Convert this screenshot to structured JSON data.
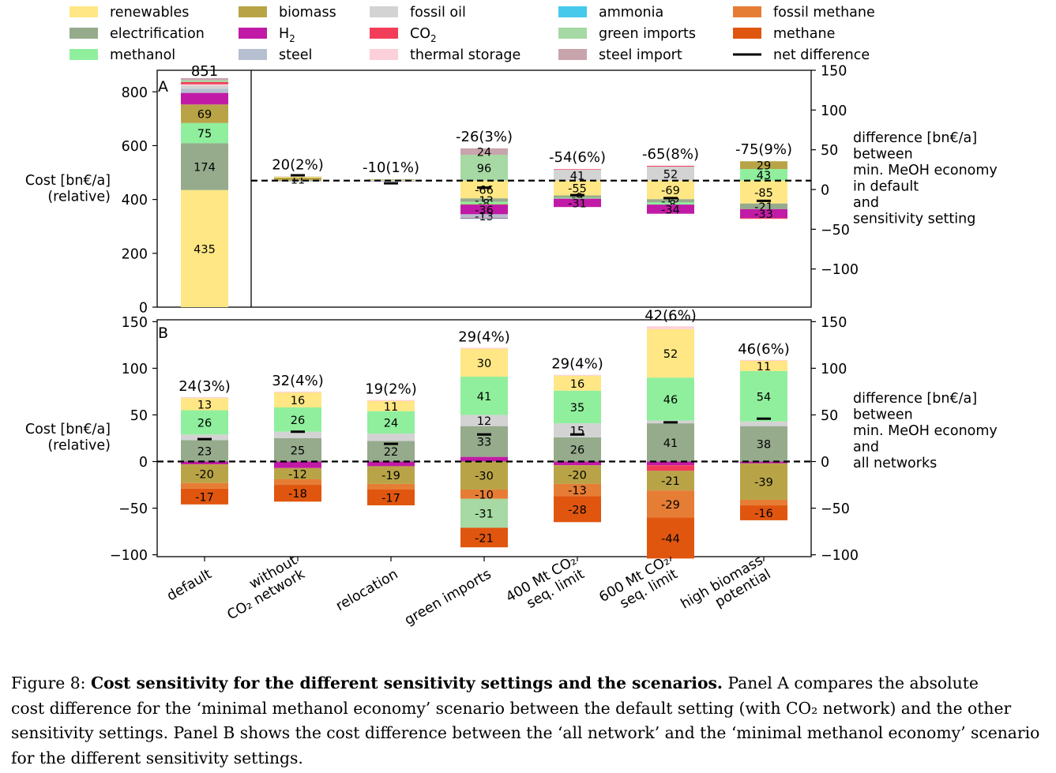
{
  "legend": [
    {
      "key": "renewables",
      "label": "renewables",
      "color": "#fee784"
    },
    {
      "key": "biomass",
      "label": "biomass",
      "color": "#b8a447"
    },
    {
      "key": "fossil_oil",
      "label": "fossil oil",
      "color": "#d3d3d3"
    },
    {
      "key": "ammonia",
      "label": "ammonia",
      "color": "#47c9ec"
    },
    {
      "key": "fossil_methane",
      "label": "fossil methane",
      "color": "#e67d35"
    },
    {
      "key": "electrification",
      "label": "electrification",
      "color": "#95ab8c"
    },
    {
      "key": "h2",
      "label": "H",
      "sub": "2",
      "color": "#c11aa6"
    },
    {
      "key": "co2",
      "label": "CO",
      "sub": "2",
      "color": "#f23d5a"
    },
    {
      "key": "green_imports",
      "label": "green imports",
      "color": "#a6d9a3"
    },
    {
      "key": "methane",
      "label": "methane",
      "color": "#e0560f"
    },
    {
      "key": "methanol",
      "label": "methanol",
      "color": "#8fef9d"
    },
    {
      "key": "steel",
      "label": "steel",
      "color": "#b5bfcf"
    },
    {
      "key": "thermal_storage",
      "label": "thermal storage",
      "color": "#fcd0d9"
    },
    {
      "key": "steel_import",
      "label": "steel import",
      "color": "#c8a4ad"
    },
    {
      "key": "net",
      "label": "net difference",
      "color": "#000000"
    }
  ],
  "chart_data": [
    {
      "panel": "A",
      "type": "bar",
      "stacked": true,
      "ylabel": "Cost [bn€/a]\n(relative)",
      "ylabel_right": "difference [bn€/a]\nbetween\nmin. MeOH economy\nin default\nand\nsensitivity setting",
      "ylim": [
        0,
        880
      ],
      "yticks": [
        0,
        200,
        400,
        600,
        800
      ],
      "ylim_right": [
        -148,
        150
      ],
      "yticks_right": [
        -100,
        -50,
        0,
        50,
        100,
        150
      ],
      "baseline_absolute": 470,
      "default_bar": {
        "category": "default",
        "total_label": "851",
        "segments": [
          {
            "key": "renewables",
            "value": 435,
            "label": "435"
          },
          {
            "key": "electrification",
            "value": 174,
            "label": "174"
          },
          {
            "key": "methanol",
            "value": 75,
            "label": "75"
          },
          {
            "key": "biomass",
            "value": 69,
            "label": "69"
          },
          {
            "key": "h2",
            "value": 43
          },
          {
            "key": "steel",
            "value": 15
          },
          {
            "key": "fossil_oil",
            "value": 12
          },
          {
            "key": "thermal_storage",
            "value": 5
          },
          {
            "key": "co2",
            "value": 8
          },
          {
            "key": "green_imports",
            "value": 7
          },
          {
            "key": "steel_import",
            "value": 8
          }
        ]
      },
      "categories": [
        "default",
        "without CO2 network",
        "relocation",
        "green imports",
        "400 Mt CO2 seq. limit",
        "600 Mt CO2 seq. limit",
        "high biomass potential"
      ],
      "differences": [
        null,
        {
          "total_label": "20(2%)",
          "net": 20,
          "positive": [
            {
              "key": "biomass",
              "value": 11,
              "label": "11"
            },
            {
              "key": "renewables",
              "value": 3
            },
            {
              "key": "fossil_oil",
              "value": 2
            }
          ],
          "negative": [
            {
              "key": "electrification",
              "value": -2
            },
            {
              "key": "steel",
              "value": -1
            }
          ]
        },
        {
          "total_label": "-10(1%)",
          "net": -10,
          "positive": [
            {
              "key": "renewables",
              "value": 2
            },
            {
              "key": "biomass",
              "value": 2
            },
            {
              "key": "green_imports",
              "value": 1
            }
          ],
          "negative": [
            {
              "key": "methanol",
              "value": -1
            },
            {
              "key": "h2",
              "value": -1
            },
            {
              "key": "steel",
              "value": -1
            }
          ]
        },
        {
          "total_label": "-26(3%)",
          "net": -26,
          "positive": [
            {
              "key": "green_imports",
              "value": 96,
              "label": "96"
            },
            {
              "key": "steel_import",
              "value": 24,
              "label": "24"
            }
          ],
          "negative": [
            {
              "key": "renewables",
              "value": -66,
              "label": "-66"
            },
            {
              "key": "electrification",
              "value": -13,
              "label": "-13"
            },
            {
              "key": "methanol",
              "value": -8,
              "label": "-8"
            },
            {
              "key": "biomass",
              "value": -2
            },
            {
              "key": "h2",
              "value": -36,
              "label": "-36"
            },
            {
              "key": "steel",
              "value": -13,
              "label": "-13"
            },
            {
              "key": "co2",
              "value": -2
            },
            {
              "key": "ammonia",
              "value": -2
            }
          ]
        },
        {
          "total_label": "-54(6%)",
          "net": -54,
          "positive": [
            {
              "key": "fossil_oil",
              "value": 41,
              "label": "41"
            },
            {
              "key": "co2",
              "value": 2
            }
          ],
          "negative": [
            {
              "key": "renewables",
              "value": -55,
              "label": "-55"
            },
            {
              "key": "electrification",
              "value": -9,
              "label": "-9"
            },
            {
              "key": "methanol",
              "value": -3
            },
            {
              "key": "h2",
              "value": -31,
              "label": "-31"
            }
          ]
        },
        {
          "total_label": "-65(8%)",
          "net": -65,
          "positive": [
            {
              "key": "fossil_oil",
              "value": 52,
              "label": "52"
            },
            {
              "key": "co2",
              "value": 3
            }
          ],
          "negative": [
            {
              "key": "renewables",
              "value": -69,
              "label": "-69"
            },
            {
              "key": "electrification",
              "value": -12,
              "label": "-12"
            },
            {
              "key": "methanol",
              "value": -8,
              "label": "-8"
            },
            {
              "key": "h2",
              "value": -34,
              "label": "-34"
            }
          ]
        },
        {
          "total_label": "-75(9%)",
          "net": -75,
          "positive": [
            {
              "key": "methanol",
              "value": 43,
              "label": "43"
            },
            {
              "key": "biomass",
              "value": 29,
              "label": "29"
            }
          ],
          "negative": [
            {
              "key": "renewables",
              "value": -85,
              "label": "-85"
            },
            {
              "key": "electrification",
              "value": -21,
              "label": "-21"
            },
            {
              "key": "h2",
              "value": -33,
              "label": "-33"
            },
            {
              "key": "co2",
              "value": -3
            }
          ]
        }
      ]
    },
    {
      "panel": "B",
      "type": "bar",
      "stacked": true,
      "ylabel": "Cost [bn€/a]\n(relative)",
      "ylabel_right": "difference [bn€/a]\nbetween\nmin. MeOH economy\nand\nall networks",
      "ylim": [
        -102,
        152
      ],
      "yticks": [
        -100,
        -50,
        0,
        50,
        100,
        150
      ],
      "yticks_right": [
        -100,
        -50,
        0,
        50,
        100,
        150
      ],
      "categories": [
        "default",
        "without CO2 network",
        "relocation",
        "green imports",
        "400 Mt CO2 seq. limit",
        "600 Mt CO2 seq. limit",
        "high biomass potential"
      ],
      "differences": [
        {
          "total_label": "24(3%)",
          "net": 24,
          "positive": [
            {
              "key": "electrification",
              "value": 23,
              "label": "23"
            },
            {
              "key": "fossil_oil",
              "value": 6
            },
            {
              "key": "methanol",
              "value": 26,
              "label": "26"
            },
            {
              "key": "renewables",
              "value": 13,
              "label": "13"
            },
            {
              "key": "thermal_storage",
              "value": 1
            }
          ],
          "negative": [
            {
              "key": "h2",
              "value": -3
            },
            {
              "key": "biomass",
              "value": -20,
              "label": "-20"
            },
            {
              "key": "fossil_methane",
              "value": -6
            },
            {
              "key": "methane",
              "value": -17,
              "label": "-17"
            }
          ]
        },
        {
          "total_label": "32(4%)",
          "net": 32,
          "positive": [
            {
              "key": "electrification",
              "value": 25,
              "label": "25"
            },
            {
              "key": "fossil_oil",
              "value": 7
            },
            {
              "key": "methanol",
              "value": 26,
              "label": "26"
            },
            {
              "key": "renewables",
              "value": 16,
              "label": "16"
            },
            {
              "key": "thermal_storage",
              "value": 1
            }
          ],
          "negative": [
            {
              "key": "h2",
              "value": -7
            },
            {
              "key": "biomass",
              "value": -12,
              "label": "-12"
            },
            {
              "key": "fossil_methane",
              "value": -6
            },
            {
              "key": "methane",
              "value": -18,
              "label": "-18"
            }
          ]
        },
        {
          "total_label": "19(2%)",
          "net": 19,
          "positive": [
            {
              "key": "electrification",
              "value": 22,
              "label": "22"
            },
            {
              "key": "fossil_oil",
              "value": 8
            },
            {
              "key": "methanol",
              "value": 24,
              "label": "24"
            },
            {
              "key": "renewables",
              "value": 11,
              "label": "11"
            },
            {
              "key": "thermal_storage",
              "value": 1
            }
          ],
          "negative": [
            {
              "key": "h2",
              "value": -5
            },
            {
              "key": "biomass",
              "value": -19,
              "label": "-19"
            },
            {
              "key": "fossil_methane",
              "value": -6
            },
            {
              "key": "methane",
              "value": -17,
              "label": "-17"
            }
          ]
        },
        {
          "total_label": "29(4%)",
          "net": 29,
          "positive": [
            {
              "key": "h2",
              "value": 5
            },
            {
              "key": "electrification",
              "value": 33,
              "label": "33"
            },
            {
              "key": "fossil_oil",
              "value": 12,
              "label": "12"
            },
            {
              "key": "methanol",
              "value": 41,
              "label": "41"
            },
            {
              "key": "renewables",
              "value": 30,
              "label": "30"
            },
            {
              "key": "thermal_storage",
              "value": 1
            }
          ],
          "negative": [
            {
              "key": "biomass",
              "value": -30,
              "label": "-30"
            },
            {
              "key": "fossil_methane",
              "value": -10,
              "label": "-10"
            },
            {
              "key": "green_imports",
              "value": -31,
              "label": "-31"
            },
            {
              "key": "methane",
              "value": -21,
              "label": "-21"
            }
          ]
        },
        {
          "total_label": "29(4%)",
          "net": 29,
          "positive": [
            {
              "key": "electrification",
              "value": 26,
              "label": "26"
            },
            {
              "key": "fossil_oil",
              "value": 15,
              "label": "15"
            },
            {
              "key": "methanol",
              "value": 35,
              "label": "35"
            },
            {
              "key": "renewables",
              "value": 16,
              "label": "16"
            },
            {
              "key": "thermal_storage",
              "value": 1
            }
          ],
          "negative": [
            {
              "key": "h2",
              "value": -4
            },
            {
              "key": "biomass",
              "value": -20,
              "label": "-20"
            },
            {
              "key": "fossil_methane",
              "value": -13,
              "label": "-13"
            },
            {
              "key": "methane",
              "value": -28,
              "label": "-28"
            }
          ]
        },
        {
          "total_label": "42(6%)",
          "net": 42,
          "positive": [
            {
              "key": "electrification",
              "value": 41,
              "label": "41"
            },
            {
              "key": "fossil_oil",
              "value": 3
            },
            {
              "key": "methanol",
              "value": 46,
              "label": "46"
            },
            {
              "key": "renewables",
              "value": 52,
              "label": "52"
            },
            {
              "key": "thermal_storage",
              "value": 3
            }
          ],
          "negative": [
            {
              "key": "h2",
              "value": -4
            },
            {
              "key": "co2",
              "value": -6
            },
            {
              "key": "biomass",
              "value": -21,
              "label": "-21"
            },
            {
              "key": "fossil_methane",
              "value": -29,
              "label": "-29"
            },
            {
              "key": "methane",
              "value": -44,
              "label": "-44"
            }
          ]
        },
        {
          "total_label": "46(6%)",
          "net": 46,
          "positive": [
            {
              "key": "electrification",
              "value": 38,
              "label": "38"
            },
            {
              "key": "fossil_oil",
              "value": 5
            },
            {
              "key": "methanol",
              "value": 54,
              "label": "54"
            },
            {
              "key": "renewables",
              "value": 11,
              "label": "11"
            },
            {
              "key": "thermal_storage",
              "value": 1
            }
          ],
          "negative": [
            {
              "key": "h2",
              "value": -2
            },
            {
              "key": "biomass",
              "value": -39,
              "label": "-39"
            },
            {
              "key": "fossil_methane",
              "value": -6
            },
            {
              "key": "methane",
              "value": -16,
              "label": "-16"
            }
          ]
        }
      ]
    }
  ],
  "xtick_labels": [
    [
      "default"
    ],
    [
      "without",
      "CO₂ network"
    ],
    [
      "relocation"
    ],
    [
      "green imports"
    ],
    [
      "400 Mt CO₂",
      "seq. limit"
    ],
    [
      "600 Mt CO₂",
      "seq. limit"
    ],
    [
      "high biomass",
      "potential"
    ]
  ],
  "panel_letters": [
    "A",
    "B"
  ],
  "caption": {
    "prefix": "Figure 8: ",
    "bold": "Cost sensitivity for the different sensitivity settings and the scenarios.",
    "line1_rest": " Panel A compares the absolute",
    "line2": "cost difference for the ‘minimal methanol economy’ scenario between the default setting (with CO₂ network) and the other",
    "line3": "sensitivity settings. Panel B shows the cost difference between the ‘all network’ and the ‘minimal methanol economy’ scenario",
    "line4": "for the different sensitivity settings."
  }
}
